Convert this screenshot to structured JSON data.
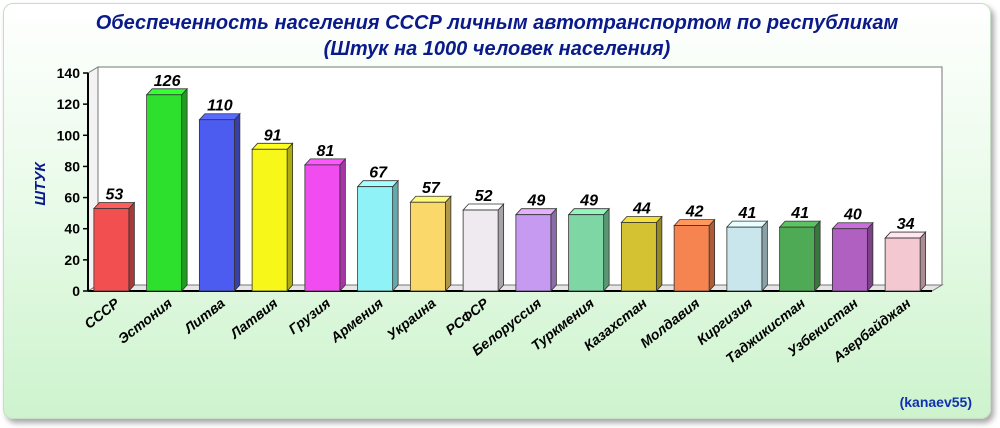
{
  "chart_data": {
    "type": "bar",
    "title": "Обеспеченность населения СССР личным автотранспортом по республикам",
    "subtitle": "(Штук на 1000 человек населения)",
    "ylabel": "ШТУК",
    "xlabel": "",
    "ylim": [
      0,
      140
    ],
    "yticks": [
      0,
      20,
      40,
      60,
      80,
      100,
      120,
      140
    ],
    "grid": false,
    "categories": [
      "СССР",
      "Эстония",
      "Литва",
      "Латвия",
      "Грузия",
      "Армения",
      "Украина",
      "РСФСР",
      "Белоруссия",
      "Туркмения",
      "Казахстан",
      "Молдавия",
      "Киргизия",
      "Таджикистан",
      "Узбекистан",
      "Азербайджан"
    ],
    "values": [
      53,
      126,
      110,
      91,
      81,
      67,
      57,
      52,
      49,
      49,
      44,
      42,
      41,
      41,
      40,
      34
    ],
    "colors": [
      "#f25050",
      "#2ee02e",
      "#4d5cf0",
      "#f7f71a",
      "#f04cf0",
      "#8ff2f7",
      "#fad96a",
      "#eeeaf0",
      "#c79af2",
      "#7fd6a5",
      "#d4c232",
      "#f58450",
      "#c8e6ec",
      "#4faa55",
      "#b060c0",
      "#f3c8d0"
    ]
  },
  "credit": "(kanaev55)"
}
